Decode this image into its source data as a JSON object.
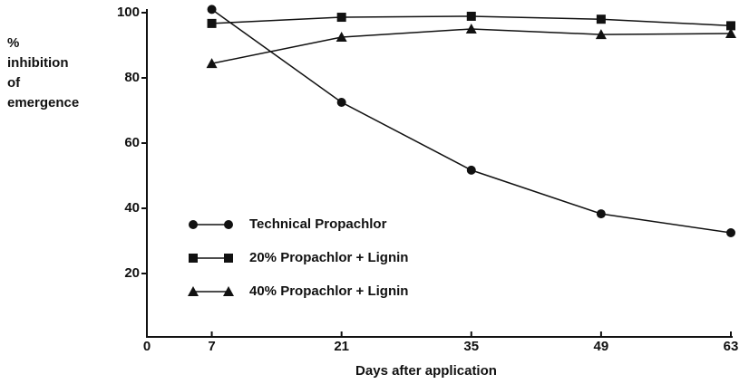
{
  "chart_data": {
    "type": "line",
    "y_label": [
      "%",
      "inhibition",
      "of",
      "emergence"
    ],
    "x_label": "Days after application",
    "x": [
      7,
      21,
      35,
      49,
      63
    ],
    "xlim": [
      0,
      63
    ],
    "xticks": [
      0,
      7,
      21,
      35,
      49,
      63
    ],
    "ylim": [
      0,
      100
    ],
    "yticks": [
      20,
      40,
      60,
      80,
      100
    ],
    "series": [
      {
        "name": "Technical Propachlor",
        "color": "#111111",
        "marker": "circle",
        "values": [
          101,
          72.5,
          51.7,
          38.3,
          32.5
        ]
      },
      {
        "name": "20% Propachlor + Lignin",
        "color": "#111111",
        "marker": "square",
        "values": [
          96.7,
          98.6,
          98.9,
          98,
          96
        ]
      },
      {
        "name": "40% Propachlor + Lignin",
        "color": "#111111",
        "marker": "triangle",
        "values": [
          84.4,
          92.5,
          95,
          93.3,
          93.6
        ]
      }
    ]
  }
}
